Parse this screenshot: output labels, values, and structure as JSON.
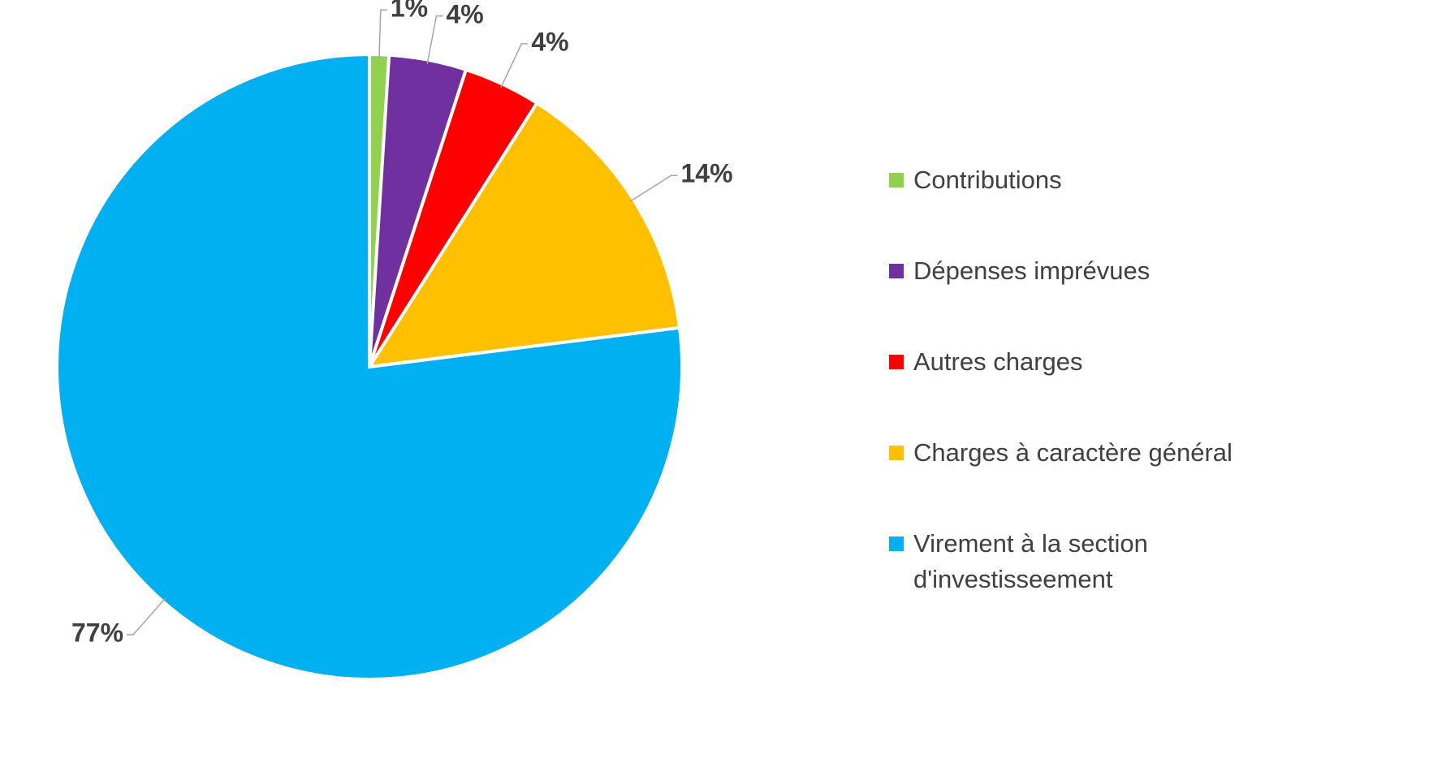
{
  "chart_data": {
    "type": "pie",
    "categories": [
      "Contributions",
      "Dépenses imprévues",
      "Autres charges",
      "Charges à caractère général",
      "Virement à la section d'investisseement"
    ],
    "values": [
      1,
      4,
      4,
      14,
      77
    ],
    "value_labels": [
      "1%",
      "4%",
      "4%",
      "14%",
      "77%"
    ],
    "colors": [
      "#92d050",
      "#7030a0",
      "#ff0000",
      "#ffc000",
      "#00b0f0"
    ],
    "legend": "right"
  }
}
